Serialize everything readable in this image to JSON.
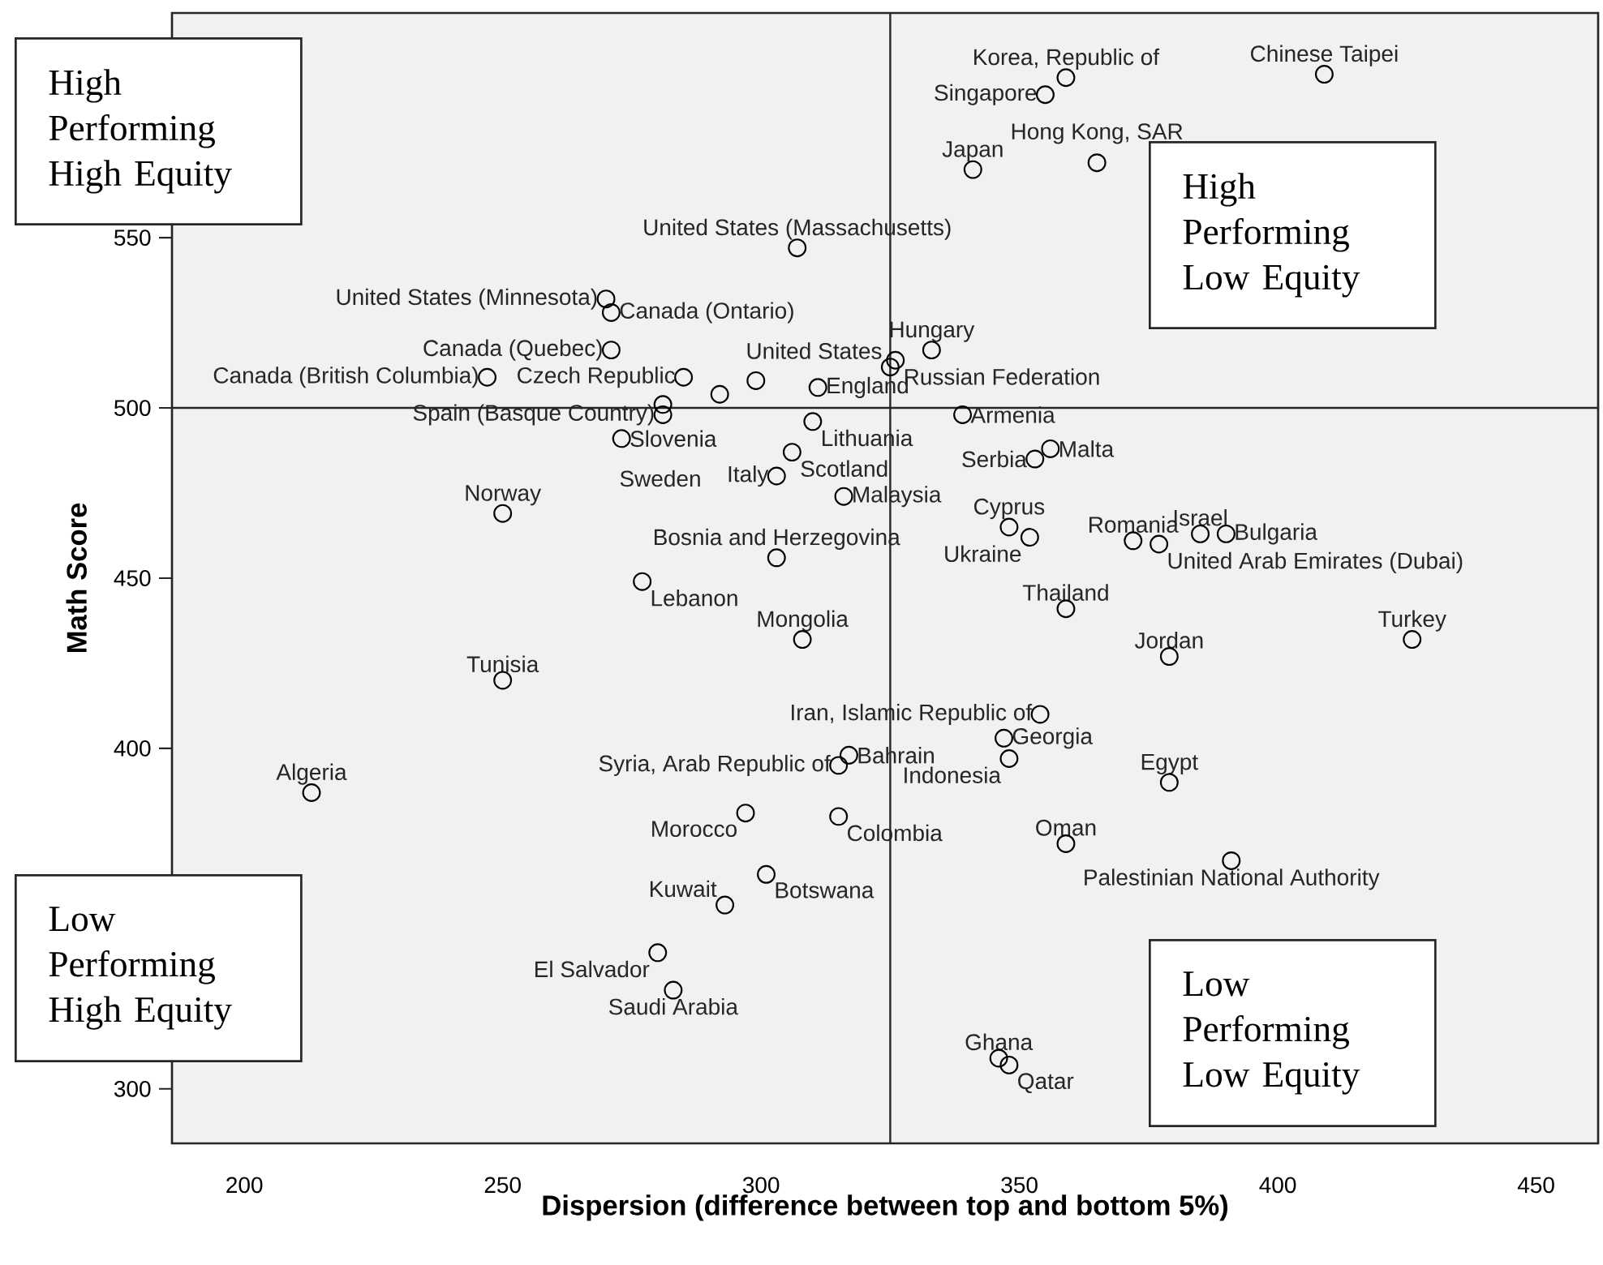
{
  "chart_data": {
    "type": "scatter",
    "xlabel": "Dispersion (difference between top and bottom 5%)",
    "ylabel": "Math Score",
    "x": [
      359,
      355,
      409,
      341,
      365,
      307,
      270,
      271,
      271,
      247,
      285,
      325,
      333,
      326,
      311,
      281,
      339,
      310,
      273,
      353,
      356,
      306,
      250,
      303,
      316,
      348,
      372,
      385,
      390,
      303,
      352,
      359,
      377,
      277,
      308,
      379,
      426,
      250,
      354,
      347,
      348,
      315,
      317,
      379,
      213,
      297,
      315,
      359,
      391,
      293,
      301,
      280,
      283,
      346,
      348,
      292,
      299,
      281
    ],
    "values": [
      597,
      592,
      598,
      570,
      572,
      547,
      532,
      528,
      517,
      509,
      509,
      512,
      517,
      514,
      506,
      498,
      498,
      496,
      491,
      485,
      488,
      487,
      469,
      480,
      474,
      465,
      461,
      463,
      463,
      456,
      462,
      441,
      460,
      449,
      432,
      427,
      432,
      420,
      410,
      403,
      397,
      395,
      398,
      390,
      387,
      381,
      380,
      372,
      367,
      354,
      363,
      340,
      329,
      309,
      307,
      504,
      508,
      501
    ],
    "color": "#000000",
    "marker": "circle",
    "xlim": [
      186,
      462
    ],
    "ylim": [
      284,
      616
    ],
    "xticks": [
      200,
      250,
      300,
      350,
      400,
      450
    ],
    "yticks": [
      300,
      400,
      450,
      500,
      550
    ],
    "ref_lines": [
      {
        "axis": "x",
        "value": 325
      },
      {
        "axis": "y",
        "value": 500
      }
    ],
    "annotations": [
      "High Performing High Equity",
      "High Performing Low Equity",
      "Low Performing High Equity",
      "Low Performing Low Equity",
      {
        "text": "Korea, Republic of",
        "x": 359,
        "y": 597
      },
      {
        "text": "Singapore",
        "x": 355,
        "y": 592
      },
      {
        "text": "Chinese Taipei",
        "x": 409,
        "y": 598
      },
      {
        "text": "Japan",
        "x": 341,
        "y": 570
      },
      {
        "text": "Hong Kong, SAR",
        "x": 365,
        "y": 572
      },
      {
        "text": "United States (Massachusetts)",
        "x": 307,
        "y": 547
      },
      {
        "text": "United States (Minnesota)",
        "x": 270,
        "y": 532
      },
      {
        "text": "Canada (Ontario)",
        "x": 271,
        "y": 528
      },
      {
        "text": "Canada (Quebec)",
        "x": 271,
        "y": 517
      },
      {
        "text": "Canada (British Columbia)",
        "x": 247,
        "y": 509
      },
      {
        "text": "Czech Republic",
        "x": 285,
        "y": 509
      },
      {
        "text": "United States",
        "x": 325,
        "y": 512
      },
      {
        "text": "Hungary",
        "x": 333,
        "y": 517
      },
      {
        "text": "Russian Federation",
        "x": 326,
        "y": 514
      },
      {
        "text": "England",
        "x": 311,
        "y": 506
      },
      {
        "text": "Spain (Basque Country)",
        "x": 281,
        "y": 498
      },
      {
        "text": "Armenia",
        "x": 339,
        "y": 498
      },
      {
        "text": "Lithuania",
        "x": 310,
        "y": 496
      },
      {
        "text": "Slovenia",
        "x": 273,
        "y": 491
      },
      {
        "text": "Serbia",
        "x": 353,
        "y": 485
      },
      {
        "text": "Malta",
        "x": 356,
        "y": 488
      },
      {
        "text": "Scotland",
        "x": 306,
        "y": 487
      },
      {
        "text": "Norway",
        "x": 250,
        "y": 469
      },
      "Sweden",
      {
        "text": "Italy",
        "x": 303,
        "y": 480
      },
      {
        "text": "Malaysia",
        "x": 316,
        "y": 474
      },
      {
        "text": "Cyprus",
        "x": 348,
        "y": 465
      },
      {
        "text": "Romania",
        "x": 372,
        "y": 461
      },
      {
        "text": "Israel",
        "x": 385,
        "y": 463
      },
      {
        "text": "Bulgaria",
        "x": 390,
        "y": 463
      },
      {
        "text": "Bosnia and Herzegovina",
        "x": 303,
        "y": 456
      },
      {
        "text": "Ukraine",
        "x": 352,
        "y": 462
      },
      {
        "text": "Thailand",
        "x": 359,
        "y": 441
      },
      {
        "text": "United Arab Emirates (Dubai)",
        "x": 377,
        "y": 460
      },
      {
        "text": "Lebanon",
        "x": 277,
        "y": 449
      },
      {
        "text": "Mongolia",
        "x": 308,
        "y": 432
      },
      {
        "text": "Jordan",
        "x": 379,
        "y": 427
      },
      {
        "text": "Turkey",
        "x": 426,
        "y": 432
      },
      {
        "text": "Tunisia",
        "x": 250,
        "y": 420
      },
      {
        "text": "Iran, Islamic Republic of",
        "x": 354,
        "y": 410
      },
      {
        "text": "Georgia",
        "x": 347,
        "y": 403
      },
      {
        "text": "Indonesia",
        "x": 348,
        "y": 397
      },
      {
        "text": "Syria, Arab Republic of",
        "x": 315,
        "y": 395
      },
      {
        "text": "Bahrain",
        "x": 317,
        "y": 398
      },
      {
        "text": "Egypt",
        "x": 379,
        "y": 390
      },
      {
        "text": "Algeria",
        "x": 213,
        "y": 387
      },
      {
        "text": "Morocco",
        "x": 297,
        "y": 381
      },
      {
        "text": "Colombia",
        "x": 315,
        "y": 380
      },
      {
        "text": "Oman",
        "x": 359,
        "y": 372
      },
      {
        "text": "Palestinian National Authority",
        "x": 391,
        "y": 367
      },
      {
        "text": "Kuwait",
        "x": 293,
        "y": 354
      },
      {
        "text": "Botswana",
        "x": 301,
        "y": 363
      },
      {
        "text": "El Salvador",
        "x": 280,
        "y": 340
      },
      {
        "text": "Saudi Arabia",
        "x": 283,
        "y": 329
      },
      {
        "text": "Ghana",
        "x": 346,
        "y": 309
      },
      {
        "text": "Qatar",
        "x": 348,
        "y": 307
      }
    ]
  }
}
